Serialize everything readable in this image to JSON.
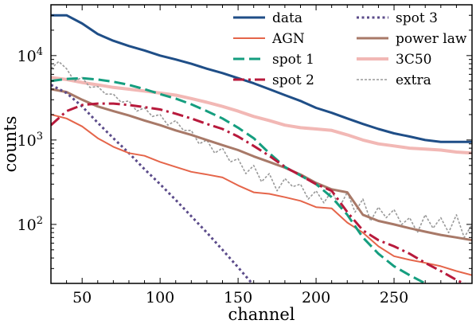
{
  "chart_data": {
    "type": "line",
    "xlabel": "channel",
    "ylabel": "counts",
    "xlim": [
      30,
      300
    ],
    "ylim": [
      20,
      40000
    ],
    "yscale": "log",
    "grid": false,
    "legend_position": "top-right",
    "x_ticks": [
      50,
      100,
      150,
      200,
      250
    ],
    "y_ticks": [
      {
        "value": 100,
        "label": "10",
        "exp": "2"
      },
      {
        "value": 1000,
        "label": "10",
        "exp": "3"
      },
      {
        "value": 10000,
        "label": "10",
        "exp": "4"
      }
    ],
    "series": [
      {
        "name": "data",
        "color": "#1f4e87",
        "dash": "solid",
        "width": 3,
        "x": [
          30,
          40,
          50,
          60,
          70,
          80,
          90,
          100,
          110,
          120,
          130,
          140,
          150,
          160,
          170,
          180,
          190,
          200,
          210,
          220,
          230,
          240,
          250,
          260,
          270,
          280,
          290,
          300
        ],
        "y": [
          30000,
          30000,
          24000,
          18000,
          15000,
          13000,
          11500,
          10000,
          9000,
          8000,
          7000,
          6200,
          5400,
          4700,
          4000,
          3400,
          2900,
          2400,
          2100,
          1800,
          1550,
          1350,
          1200,
          1100,
          1000,
          950,
          950,
          950
        ]
      },
      {
        "name": "AGN",
        "color": "#e5654a",
        "dash": "solid",
        "width": 2,
        "x": [
          30,
          40,
          50,
          60,
          70,
          80,
          90,
          100,
          110,
          120,
          130,
          140,
          150,
          160,
          170,
          180,
          190,
          200,
          210,
          220,
          230,
          240,
          250,
          260,
          270,
          280,
          290,
          300
        ],
        "y": [
          2000,
          1800,
          1450,
          1050,
          830,
          700,
          650,
          550,
          480,
          420,
          390,
          360,
          290,
          240,
          230,
          210,
          190,
          160,
          155,
          105,
          80,
          55,
          42,
          38,
          35,
          32,
          28,
          25
        ]
      },
      {
        "name": "spot 1",
        "color": "#159e7f",
        "dash": "dash",
        "width": 3,
        "x": [
          30,
          40,
          50,
          60,
          70,
          80,
          90,
          100,
          110,
          120,
          130,
          140,
          150,
          160,
          170,
          180,
          190,
          200,
          210,
          220,
          230,
          240,
          250,
          260,
          270,
          280
        ],
        "y": [
          5000,
          5300,
          5400,
          5200,
          4900,
          4500,
          4000,
          3500,
          3100,
          2650,
          2200,
          1800,
          1400,
          1050,
          700,
          480,
          380,
          300,
          210,
          130,
          70,
          45,
          32,
          25,
          20,
          18
        ]
      },
      {
        "name": "spot 2",
        "color": "#b81a3c",
        "dash": "dashdot",
        "width": 3,
        "x": [
          30,
          40,
          50,
          60,
          70,
          80,
          90,
          100,
          110,
          120,
          130,
          140,
          150,
          160,
          170,
          180,
          190,
          200,
          210,
          220,
          230,
          240,
          250,
          260,
          270,
          280,
          290,
          300
        ],
        "y": [
          1500,
          2200,
          2600,
          2700,
          2700,
          2600,
          2450,
          2300,
          2050,
          1800,
          1550,
          1350,
          1100,
          850,
          650,
          480,
          380,
          300,
          250,
          140,
          85,
          65,
          55,
          45,
          35,
          28,
          22,
          18
        ]
      },
      {
        "name": "spot 3",
        "color": "#5b4b8a",
        "dash": "dot",
        "width": 3,
        "x": [
          30,
          40,
          50,
          60,
          70,
          80,
          90,
          100,
          110,
          120,
          130,
          140,
          150,
          160
        ],
        "y": [
          4500,
          3600,
          2500,
          1600,
          1050,
          700,
          450,
          300,
          195,
          125,
          80,
          50,
          31,
          19
        ]
      },
      {
        "name": "power law",
        "color": "#a87968",
        "dash": "solid",
        "width": 3,
        "x": [
          30,
          40,
          50,
          60,
          70,
          80,
          90,
          100,
          110,
          120,
          130,
          140,
          150,
          160,
          170,
          180,
          190,
          200,
          210,
          220,
          230,
          240,
          250,
          260,
          270,
          280,
          290,
          300
        ],
        "y": [
          4000,
          3700,
          3000,
          2500,
          2200,
          1950,
          1700,
          1500,
          1300,
          1150,
          1000,
          870,
          760,
          640,
          550,
          470,
          390,
          310,
          260,
          240,
          130,
          110,
          100,
          90,
          82,
          75,
          70,
          65
        ]
      },
      {
        "name": "3C50",
        "color": "#f2b8b5",
        "dash": "solid",
        "width": 4,
        "x": [
          30,
          40,
          50,
          60,
          70,
          80,
          90,
          100,
          110,
          120,
          130,
          140,
          150,
          160,
          170,
          180,
          190,
          200,
          210,
          220,
          230,
          240,
          250,
          260,
          270,
          280,
          290,
          300
        ],
        "y": [
          5500,
          5200,
          4800,
          4500,
          4200,
          4000,
          3800,
          3600,
          3400,
          3100,
          2800,
          2500,
          2200,
          1900,
          1700,
          1500,
          1400,
          1350,
          1300,
          1150,
          1000,
          900,
          850,
          800,
          780,
          760,
          720,
          700
        ]
      },
      {
        "name": "extra",
        "color": "#999999",
        "dash": "fine",
        "width": 1.6,
        "x": [
          30,
          35,
          40,
          45,
          50,
          55,
          60,
          65,
          70,
          75,
          80,
          85,
          90,
          95,
          100,
          105,
          110,
          115,
          120,
          125,
          130,
          135,
          140,
          145,
          150,
          155,
          160,
          165,
          170,
          175,
          180,
          185,
          190,
          195,
          200,
          205,
          210,
          215,
          220,
          225,
          230,
          235,
          240,
          245,
          250,
          255,
          260,
          265,
          270,
          275,
          280,
          285,
          290,
          295,
          300
        ],
        "y": [
          7000,
          8500,
          7000,
          5000,
          5500,
          4200,
          4300,
          3500,
          3500,
          2800,
          2900,
          2200,
          2400,
          1900,
          2000,
          1500,
          1700,
          1300,
          1300,
          900,
          1000,
          700,
          800,
          550,
          600,
          400,
          500,
          320,
          400,
          250,
          350,
          280,
          300,
          200,
          250,
          180,
          250,
          160,
          240,
          140,
          200,
          110,
          160,
          120,
          150,
          100,
          120,
          80,
          130,
          90,
          120,
          80,
          130,
          70,
          100
        ]
      }
    ]
  }
}
